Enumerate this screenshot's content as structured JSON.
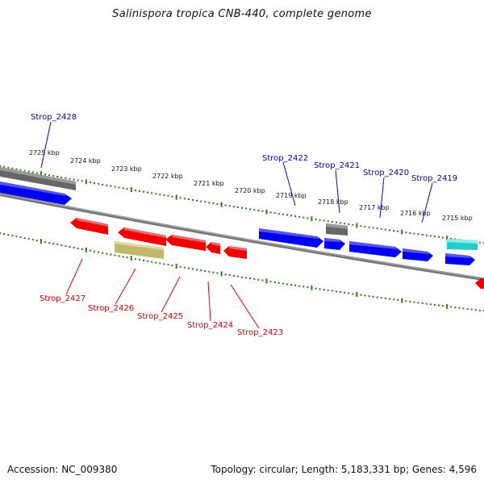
{
  "title": "Salinispora tropica CNB-440, complete genome",
  "footer": {
    "accession": "Accession: NC_009380",
    "summary": "Topology: circular; Length: 5,183,331 bp; Genes: 4,596"
  },
  "colors": {
    "forward_gene": "#0000ee",
    "reverse_gene": "#ee0000",
    "label_forward": "#0000aa",
    "label_reverse": "#cc0000",
    "backbone": "#777777",
    "ticks": "#2a7a1a",
    "olive": "#c2b86a",
    "gray": "#666666",
    "cyan": "#22cccc"
  },
  "kbp_labels": [
    "2725 kbp",
    "2724 kbp",
    "2723 kbp",
    "2722 kbp",
    "2721 kbp",
    "2720 kbp",
    "2719 kbp",
    "2718 kbp",
    "2717 kbp",
    "2716 kbp",
    "2715 kbp"
  ],
  "gene_labels_forward": [
    "Strop_2428",
    "Strop_2422",
    "Strop_2421",
    "Strop_2420",
    "Strop_2419"
  ],
  "gene_labels_reverse": [
    "Strop_2427",
    "Strop_2426",
    "Strop_2425",
    "Strop_2424",
    "Strop_2423"
  ]
}
